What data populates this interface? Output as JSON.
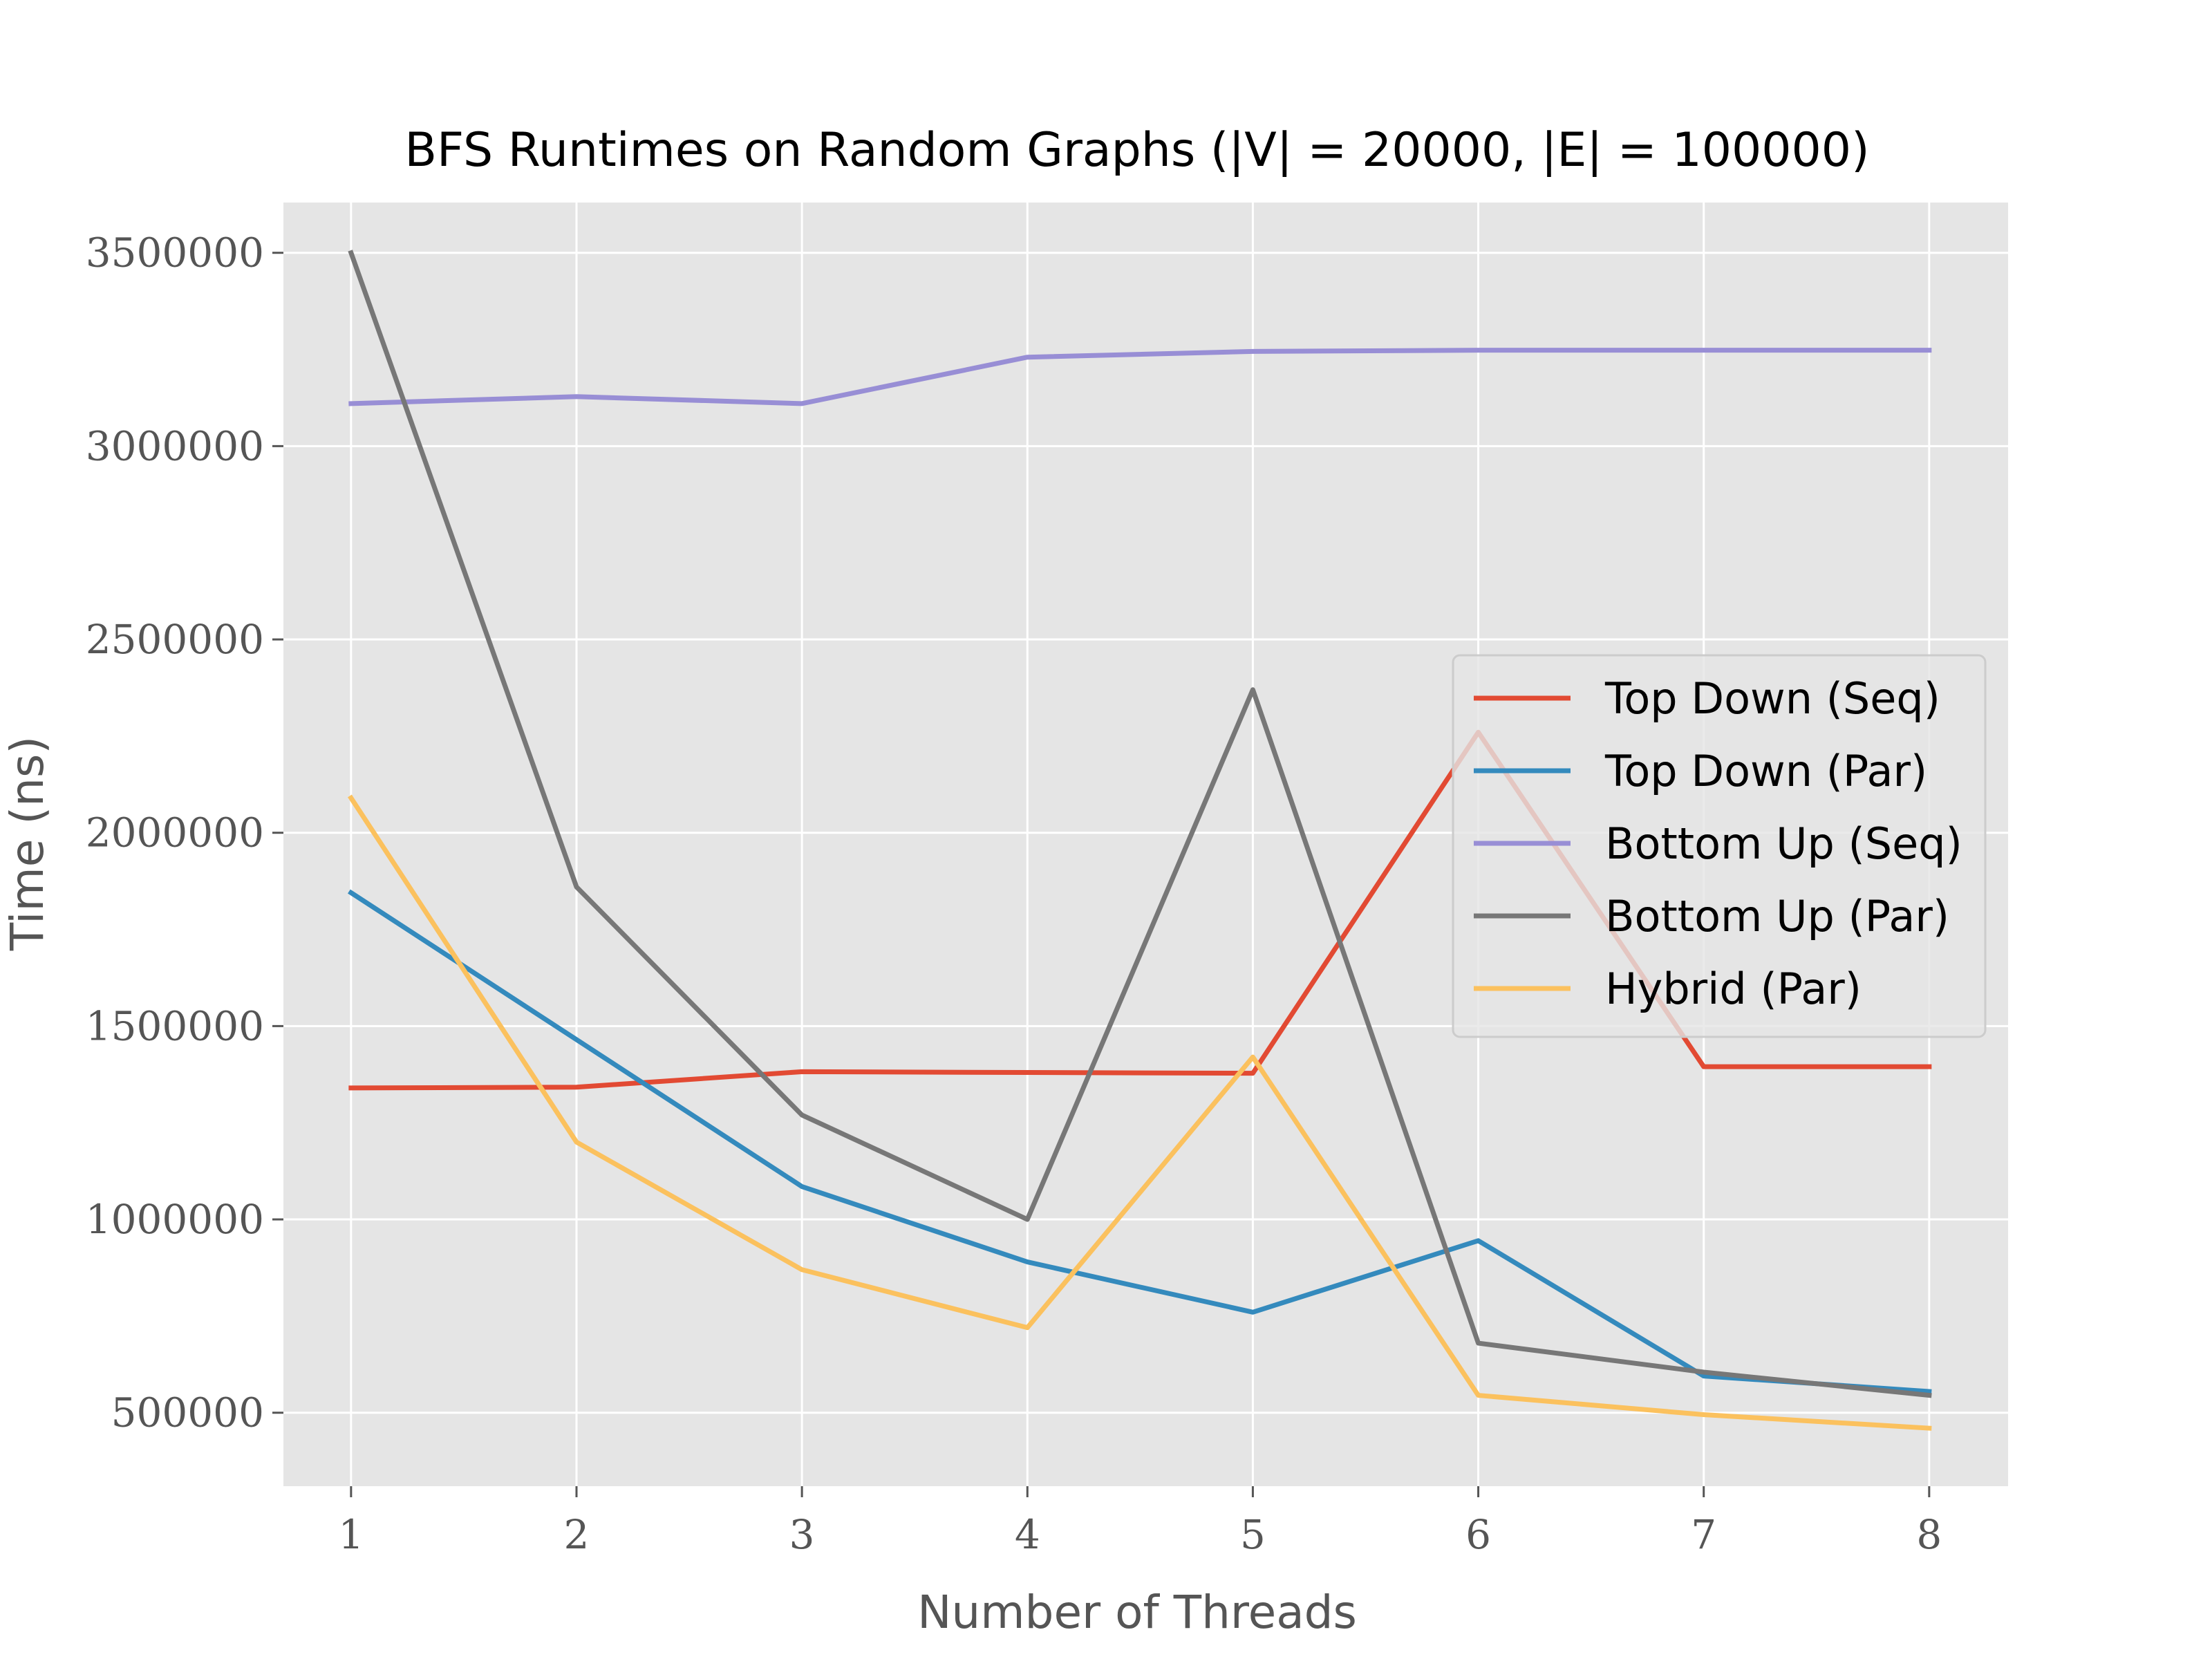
{
  "chart_data": {
    "type": "line",
    "title": "BFS Runtimes on Random Graphs (|V| = 20000, |E| = 100000)",
    "xlabel": "Number of Threads",
    "ylabel": "Time (ns)",
    "x": [
      1,
      2,
      3,
      4,
      5,
      6,
      7,
      8
    ],
    "x_ticks": [
      "1",
      "2",
      "3",
      "4",
      "5",
      "6",
      "7",
      "8"
    ],
    "xlim": [
      0.7,
      8.35
    ],
    "ylim": [
      310000,
      3630000
    ],
    "y_ticks": [
      500000,
      1000000,
      1500000,
      2000000,
      2500000,
      3000000,
      3500000
    ],
    "y_tick_labels": [
      "500000",
      "1000000",
      "1500000",
      "2000000",
      "2500000",
      "3000000",
      "3500000"
    ],
    "grid": true,
    "legend_position": "center-right",
    "series": [
      {
        "name": "Top Down (Seq)",
        "color": "#E24A33",
        "values": [
          1340000,
          1342000,
          1382000,
          1380000,
          1378000,
          2260000,
          1395000,
          1395000
        ]
      },
      {
        "name": "Top Down (Par)",
        "color": "#348ABD",
        "values": [
          1845000,
          1465000,
          1085000,
          890000,
          760000,
          945000,
          595000,
          555000
        ]
      },
      {
        "name": "Bottom Up (Seq)",
        "color": "#988ED5",
        "values": [
          3110000,
          3128000,
          3110000,
          3230000,
          3245000,
          3248000,
          3248000,
          3248000
        ]
      },
      {
        "name": "Bottom Up (Par)",
        "color": "#777777",
        "values": [
          3500000,
          1860000,
          1270000,
          1000000,
          2370000,
          680000,
          605000,
          545000
        ]
      },
      {
        "name": "Hybrid (Par)",
        "color": "#FBC15E",
        "values": [
          2090000,
          1200000,
          870000,
          720000,
          1420000,
          545000,
          495000,
          460000
        ]
      }
    ]
  }
}
